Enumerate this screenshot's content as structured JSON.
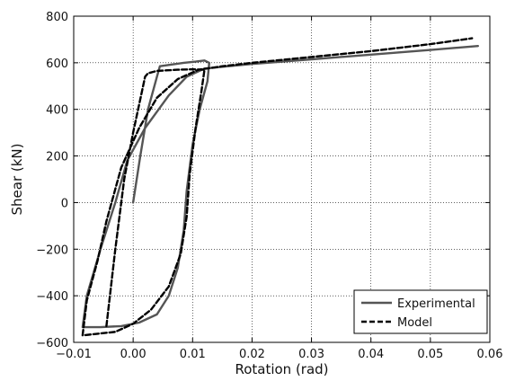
{
  "chart_data": {
    "type": "line",
    "title": "",
    "xlabel": "Rotation (rad)",
    "ylabel": "Shear (kN)",
    "xlim": [
      -0.01,
      0.06
    ],
    "ylim": [
      -600,
      800
    ],
    "xticks": [
      -0.01,
      0.0,
      0.01,
      0.02,
      0.03,
      0.04,
      0.05,
      0.06
    ],
    "xtick_labels": [
      "−0.01",
      "0.00",
      "0.01",
      "0.02",
      "0.03",
      "0.04",
      "0.05",
      "0.06"
    ],
    "yticks": [
      -600,
      -400,
      -200,
      0,
      200,
      400,
      600,
      800
    ],
    "ytick_labels": [
      "−600",
      "−400",
      "−200",
      "0",
      "200",
      "400",
      "600",
      "800"
    ],
    "grid": true,
    "legend_position": "bottom-right",
    "series": [
      {
        "name": "Experimental",
        "color": "#555555",
        "style": "solid",
        "points": [
          [
            0.0,
            0
          ],
          [
            0.0012,
            200
          ],
          [
            0.0025,
            400
          ],
          [
            0.004,
            540
          ],
          [
            0.0045,
            585
          ],
          [
            0.0085,
            600
          ],
          [
            0.0105,
            605
          ],
          [
            0.012,
            610
          ],
          [
            0.0128,
            600
          ],
          [
            0.0125,
            520
          ],
          [
            0.0112,
            400
          ],
          [
            0.01,
            250
          ],
          [
            0.009,
            50
          ],
          [
            0.0085,
            -120
          ],
          [
            0.0075,
            -280
          ],
          [
            0.006,
            -400
          ],
          [
            0.004,
            -480
          ],
          [
            0.001,
            -515
          ],
          [
            -0.002,
            -530
          ],
          [
            -0.0055,
            -535
          ],
          [
            -0.0085,
            -535
          ],
          [
            -0.0078,
            -400
          ],
          [
            -0.0055,
            -200
          ],
          [
            -0.003,
            0
          ],
          [
            -0.001,
            180
          ],
          [
            0.002,
            320
          ],
          [
            0.006,
            460
          ],
          [
            0.009,
            540
          ],
          [
            0.012,
            575
          ],
          [
            0.016,
            585
          ],
          [
            0.02,
            595
          ],
          [
            0.03,
            615
          ],
          [
            0.04,
            635
          ],
          [
            0.05,
            655
          ],
          [
            0.058,
            672
          ]
        ]
      },
      {
        "name": "Model",
        "color": "#000000",
        "style": "dashed",
        "points": [
          [
            -0.0045,
            -530
          ],
          [
            -0.003,
            -200
          ],
          [
            -0.0015,
            100
          ],
          [
            0.0,
            300
          ],
          [
            0.0015,
            480
          ],
          [
            0.002,
            540
          ],
          [
            0.0025,
            555
          ],
          [
            0.004,
            565
          ],
          [
            0.0075,
            570
          ],
          [
            0.01,
            572
          ],
          [
            0.012,
            570
          ],
          [
            0.0115,
            480
          ],
          [
            0.0105,
            320
          ],
          [
            0.0095,
            120
          ],
          [
            0.009,
            -60
          ],
          [
            0.008,
            -220
          ],
          [
            0.006,
            -360
          ],
          [
            0.003,
            -460
          ],
          [
            0.0,
            -520
          ],
          [
            -0.003,
            -555
          ],
          [
            -0.0085,
            -570
          ],
          [
            -0.0078,
            -420
          ],
          [
            -0.006,
            -250
          ],
          [
            -0.0045,
            -80
          ],
          [
            -0.002,
            150
          ],
          [
            0.001,
            320
          ],
          [
            0.004,
            450
          ],
          [
            0.0075,
            530
          ],
          [
            0.011,
            570
          ],
          [
            0.015,
            585
          ],
          [
            0.02,
            600
          ],
          [
            0.03,
            625
          ],
          [
            0.04,
            650
          ],
          [
            0.05,
            680
          ],
          [
            0.057,
            705
          ]
        ]
      }
    ]
  }
}
